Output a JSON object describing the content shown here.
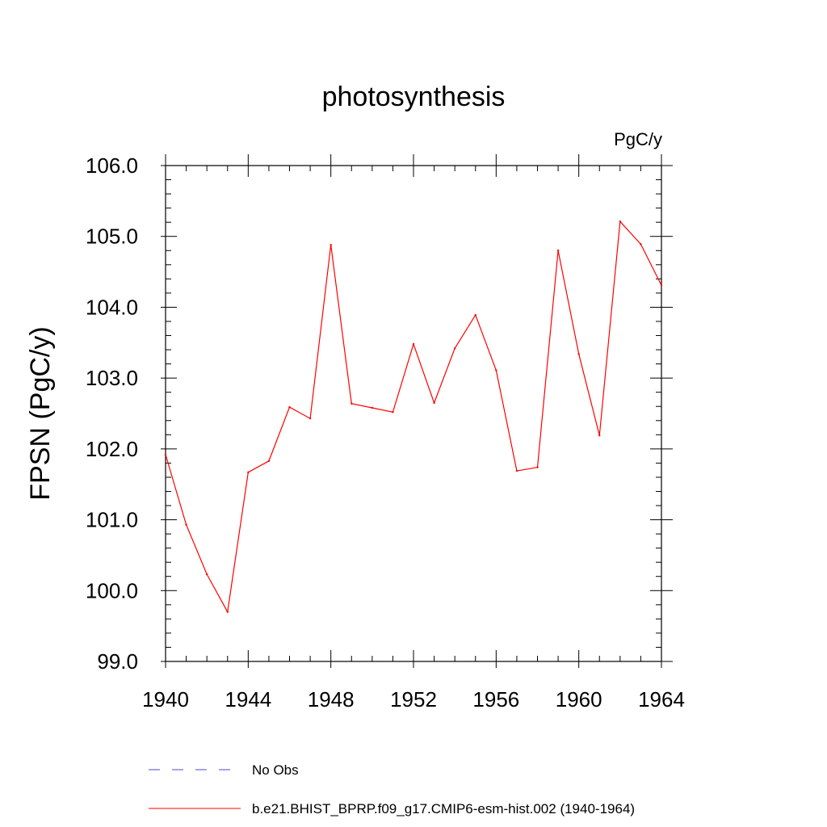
{
  "chart_data": {
    "type": "line",
    "title": "photosynthesis",
    "units_label": "PgC/y",
    "xlabel": "",
    "ylabel": "FPSN  (PgC/y)",
    "xlim": [
      1940,
      1964
    ],
    "ylim": [
      99.0,
      106.0
    ],
    "x_ticks": [
      "1940",
      "1944",
      "1948",
      "1952",
      "1956",
      "1960",
      "1964"
    ],
    "y_ticks": [
      "99.0",
      "100.0",
      "101.0",
      "102.0",
      "103.0",
      "104.0",
      "105.0",
      "106.0"
    ],
    "grid": false,
    "legend_placement": "bottom",
    "series": [
      {
        "name": "No Obs",
        "color": "#4a4acc",
        "dash": "dashed",
        "x": [],
        "y": []
      },
      {
        "name": "b.e21.BHIST_BPRP.f09_g17.CMIP6-esm-hist.002 (1940-1964)",
        "color": "#ff0000",
        "dash": "solid",
        "x": [
          1940,
          1941,
          1942,
          1943,
          1944,
          1945,
          1946,
          1947,
          1948,
          1949,
          1950,
          1951,
          1952,
          1953,
          1954,
          1955,
          1956,
          1957,
          1958,
          1959,
          1960,
          1961,
          1962,
          1963,
          1964
        ],
        "y": [
          101.92,
          100.93,
          100.23,
          99.7,
          101.67,
          101.83,
          102.59,
          102.43,
          104.88,
          102.64,
          102.58,
          102.52,
          103.48,
          102.65,
          103.42,
          103.89,
          103.11,
          101.69,
          101.74,
          104.8,
          103.34,
          102.19,
          105.21,
          104.89,
          104.31
        ]
      }
    ]
  }
}
